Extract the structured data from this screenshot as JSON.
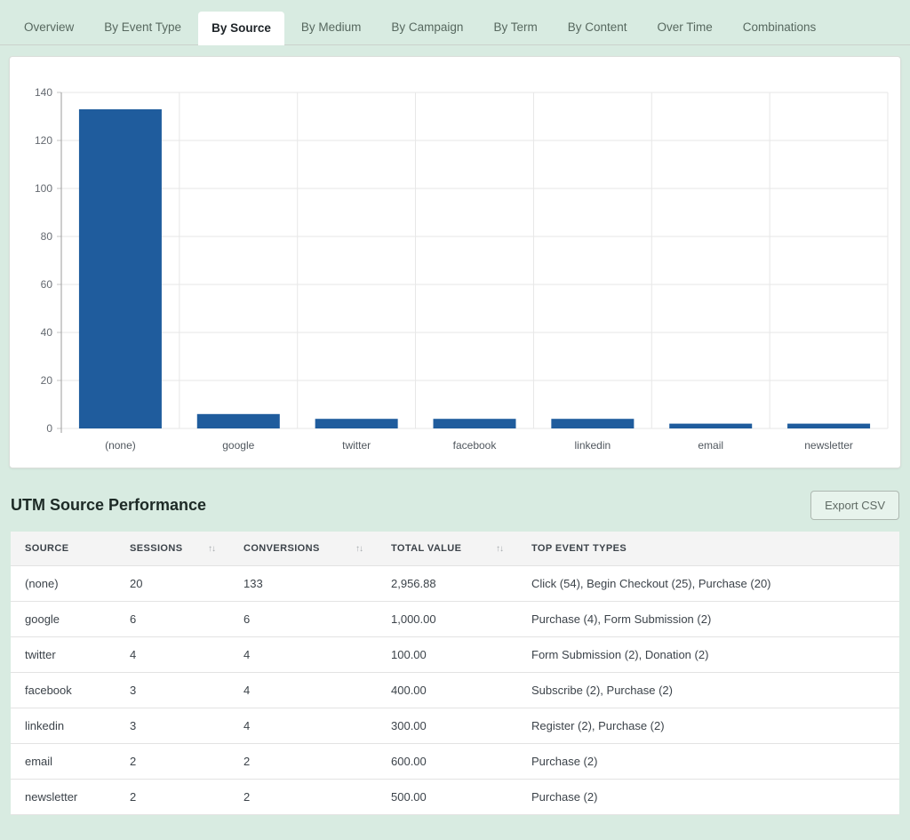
{
  "theme": {
    "page_bg": "#d8ebe1",
    "bar_color": "#1f5c9d"
  },
  "tabs": {
    "items": [
      {
        "label": "Overview",
        "active": false
      },
      {
        "label": "By Event Type",
        "active": false
      },
      {
        "label": "By Source",
        "active": true
      },
      {
        "label": "By Medium",
        "active": false
      },
      {
        "label": "By Campaign",
        "active": false
      },
      {
        "label": "By Term",
        "active": false
      },
      {
        "label": "By Content",
        "active": false
      },
      {
        "label": "Over Time",
        "active": false
      },
      {
        "label": "Combinations",
        "active": false
      }
    ]
  },
  "chart_data": {
    "type": "bar",
    "categories": [
      "(none)",
      "google",
      "twitter",
      "facebook",
      "linkedin",
      "email",
      "newsletter"
    ],
    "values": [
      133,
      6,
      4,
      4,
      4,
      2,
      2
    ],
    "title": "",
    "xlabel": "",
    "ylabel": "",
    "ylim": [
      0,
      140
    ],
    "ytick_step": 20,
    "grid": true,
    "legend": false,
    "bar_color": "#1f5c9d"
  },
  "section": {
    "title": "UTM Source Performance",
    "export_button_label": "Export CSV"
  },
  "table": {
    "sort_icon": "↑↓",
    "columns": [
      {
        "label": "SOURCE",
        "sortable": false
      },
      {
        "label": "SESSIONS",
        "sortable": true
      },
      {
        "label": "CONVERSIONS",
        "sortable": true
      },
      {
        "label": "TOTAL VALUE",
        "sortable": true
      },
      {
        "label": "TOP EVENT TYPES",
        "sortable": false
      }
    ],
    "rows": [
      [
        "(none)",
        "20",
        "133",
        "2,956.88",
        "Click (54), Begin Checkout (25), Purchase (20)"
      ],
      [
        "google",
        "6",
        "6",
        "1,000.00",
        "Purchase (4), Form Submission (2)"
      ],
      [
        "twitter",
        "4",
        "4",
        "100.00",
        "Form Submission (2), Donation (2)"
      ],
      [
        "facebook",
        "3",
        "4",
        "400.00",
        "Subscribe (2), Purchase (2)"
      ],
      [
        "linkedin",
        "3",
        "4",
        "300.00",
        "Register (2), Purchase (2)"
      ],
      [
        "email",
        "2",
        "2",
        "600.00",
        "Purchase (2)"
      ],
      [
        "newsletter",
        "2",
        "2",
        "500.00",
        "Purchase (2)"
      ]
    ]
  }
}
